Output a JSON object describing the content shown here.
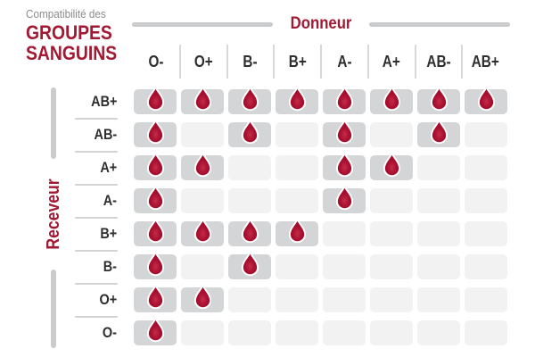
{
  "title": {
    "eyebrow": "Compatibilité des",
    "line1": "GROUPES",
    "line2": "SANGUINS"
  },
  "chart_data": {
    "type": "heatmap",
    "title": "Compatibilité des groupes sanguins",
    "x_axis_label": "Donneur",
    "y_axis_label": "Receveur",
    "donors": [
      "O-",
      "O+",
      "B-",
      "B+",
      "A-",
      "A+",
      "AB-",
      "AB+"
    ],
    "receivers": [
      "AB+",
      "AB-",
      "A+",
      "A-",
      "B+",
      "B-",
      "O+",
      "O-"
    ],
    "matrix": [
      [
        1,
        1,
        1,
        1,
        1,
        1,
        1,
        1
      ],
      [
        1,
        0,
        1,
        0,
        1,
        0,
        1,
        0
      ],
      [
        1,
        1,
        0,
        0,
        1,
        1,
        0,
        0
      ],
      [
        1,
        0,
        0,
        0,
        1,
        0,
        0,
        0
      ],
      [
        1,
        1,
        1,
        1,
        0,
        0,
        0,
        0
      ],
      [
        1,
        0,
        1,
        0,
        0,
        0,
        0,
        0
      ],
      [
        1,
        1,
        0,
        0,
        0,
        0,
        0,
        0
      ],
      [
        1,
        0,
        0,
        0,
        0,
        0,
        0,
        0
      ]
    ],
    "marker_icon": "blood-drop-icon",
    "marker_meaning": "compatible"
  },
  "colors": {
    "accent_red": "#a31832",
    "drop_red": "#a60e2d",
    "drop_highlight": "#c22c49",
    "cell_filled": "#d3d5d6",
    "cell_empty": "#f2f2f2",
    "line_gray": "#c9cbcc",
    "header_text": "#2e2e2e",
    "eyebrow_gray": "#8c8c8c"
  }
}
